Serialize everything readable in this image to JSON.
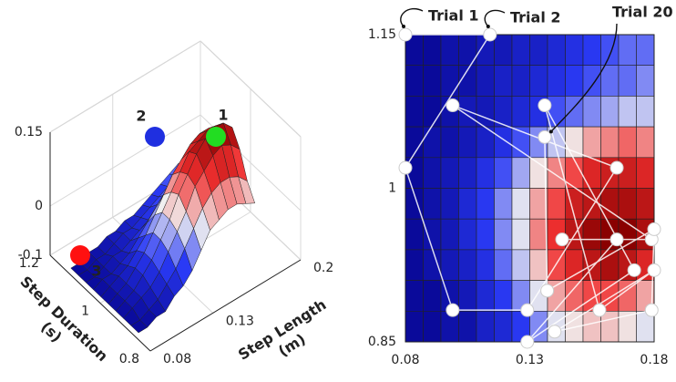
{
  "chart_data": [
    {
      "type": "surface",
      "xlabel": [
        "Step Length",
        "(m)"
      ],
      "ylabel": [
        "Step Duration",
        "(s)"
      ],
      "xlim": [
        0.08,
        0.2
      ],
      "xticks": [
        0.08,
        0.13,
        0.2
      ],
      "ylim": [
        0.8,
        1.2
      ],
      "yticks": [
        0.8,
        1,
        1.2
      ],
      "zlim": [
        -0.1,
        0.15
      ],
      "zticks": [
        -0.1,
        0,
        0.15
      ],
      "annotations": [
        {
          "text": "1",
          "color": "#22dd22"
        },
        {
          "text": "2",
          "color": "#1f2fe0"
        },
        {
          "text": "3",
          "color": "#ff1010"
        }
      ]
    },
    {
      "type": "heatmap",
      "xlim": [
        0.08,
        0.18
      ],
      "xticks": [
        0.08,
        0.13,
        0.18
      ],
      "ylim": [
        0.85,
        1.15
      ],
      "yticks": [
        0.85,
        1,
        1.15
      ],
      "zlim": [
        -0.1,
        0.15
      ],
      "colors": [
        "#0a0a9a",
        "#2a3af5",
        "#f0f0f0",
        "#f03030",
        "#8a0000"
      ],
      "z": [
        [
          -0.1,
          -0.1,
          -0.09,
          -0.09,
          -0.08,
          -0.08,
          -0.07,
          -0.07,
          -0.06,
          -0.05,
          -0.04,
          -0.03,
          -0.02,
          -0.02
        ],
        [
          -0.1,
          -0.1,
          -0.09,
          -0.09,
          -0.08,
          -0.07,
          -0.07,
          -0.06,
          -0.05,
          -0.04,
          -0.03,
          -0.02,
          -0.02,
          -0.01
        ],
        [
          -0.1,
          -0.1,
          -0.09,
          -0.08,
          -0.08,
          -0.07,
          -0.06,
          -0.05,
          -0.03,
          -0.02,
          -0.01,
          0.0,
          0.01,
          0.01
        ],
        [
          -0.1,
          -0.09,
          -0.09,
          -0.08,
          -0.07,
          -0.05,
          -0.03,
          -0.01,
          0.01,
          0.03,
          0.05,
          0.06,
          0.07,
          0.06
        ],
        [
          -0.1,
          -0.09,
          -0.08,
          -0.07,
          -0.05,
          -0.03,
          0.0,
          0.03,
          0.06,
          0.08,
          0.1,
          0.11,
          0.11,
          0.1
        ],
        [
          -0.1,
          -0.09,
          -0.08,
          -0.06,
          -0.04,
          -0.01,
          0.02,
          0.05,
          0.08,
          0.11,
          0.12,
          0.13,
          0.13,
          0.12
        ],
        [
          -0.1,
          -0.09,
          -0.08,
          -0.06,
          -0.04,
          -0.01,
          0.02,
          0.06,
          0.09,
          0.12,
          0.14,
          0.15,
          0.15,
          0.13
        ],
        [
          -0.1,
          -0.09,
          -0.08,
          -0.07,
          -0.05,
          -0.02,
          0.01,
          0.04,
          0.08,
          0.1,
          0.12,
          0.13,
          0.12,
          0.1
        ],
        [
          -0.1,
          -0.1,
          -0.09,
          -0.08,
          -0.06,
          -0.04,
          -0.01,
          0.02,
          0.05,
          0.07,
          0.08,
          0.08,
          0.07,
          0.05
        ],
        [
          -0.1,
          -0.1,
          -0.09,
          -0.09,
          -0.07,
          -0.06,
          -0.04,
          -0.01,
          0.02,
          0.03,
          0.04,
          0.04,
          0.03,
          0.02
        ]
      ],
      "trials": {
        "color": "#ffffff",
        "x": [
          0.08,
          0.114,
          0.08,
          0.099,
          0.129,
          0.165,
          0.099,
          0.179,
          0.143,
          0.165,
          0.129,
          0.172,
          0.136,
          0.158,
          0.18,
          0.14,
          0.179,
          0.18,
          0.137,
          0.136
        ],
        "y": [
          1.15,
          1.15,
          1.02,
          0.881,
          0.881,
          1.02,
          1.081,
          0.95,
          0.95,
          0.95,
          0.85,
          0.92,
          1.081,
          0.881,
          0.92,
          0.86,
          0.881,
          0.96,
          0.9,
          1.05
        ]
      },
      "annotations": [
        {
          "text": "Trial 1"
        },
        {
          "text": "Trial 2"
        },
        {
          "text": "Trial 20"
        }
      ]
    }
  ]
}
